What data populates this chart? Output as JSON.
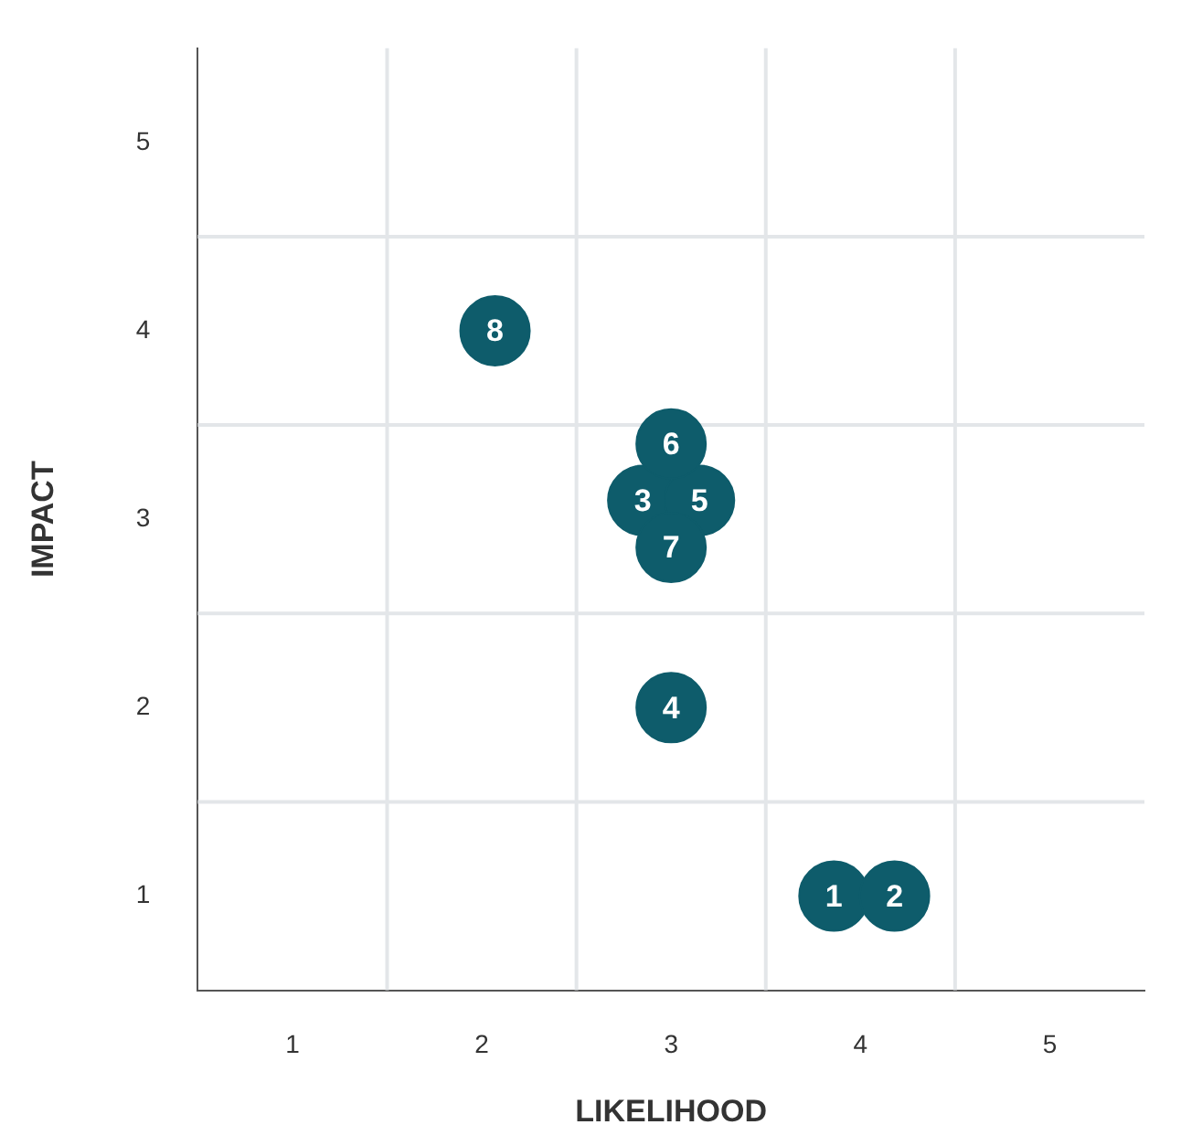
{
  "chart_data": {
    "type": "scatter",
    "xlabel": "LIKELIHOOD",
    "ylabel": "IMPACT",
    "x": [
      3.86,
      4.18,
      2.85,
      3.0,
      3.15,
      3.0,
      3.0,
      2.07
    ],
    "values": [
      1.0,
      1.0,
      3.1,
      2.0,
      3.1,
      3.4,
      2.85,
      4.0
    ],
    "color": "#0e5c6b",
    "marker": "circle",
    "xlim": [
      0.5,
      5.5
    ],
    "xticks": [
      1,
      2,
      3,
      4,
      5
    ],
    "ylim": [
      0.5,
      5.5
    ],
    "yticks": [
      1,
      2,
      3,
      4,
      5
    ],
    "grid": true,
    "legend": false,
    "annotations": [
      {
        "text": "1",
        "x": 3.86,
        "y": 1.0
      },
      {
        "text": "2",
        "x": 4.18,
        "y": 1.0
      },
      {
        "text": "3",
        "x": 2.85,
        "y": 3.1
      },
      {
        "text": "4",
        "x": 3.0,
        "y": 2.0
      },
      {
        "text": "5",
        "x": 3.15,
        "y": 3.1
      },
      {
        "text": "6",
        "x": 3.0,
        "y": 3.4
      },
      {
        "text": "7",
        "x": 3.0,
        "y": 2.85
      },
      {
        "text": "8",
        "x": 2.07,
        "y": 4.0
      }
    ]
  }
}
